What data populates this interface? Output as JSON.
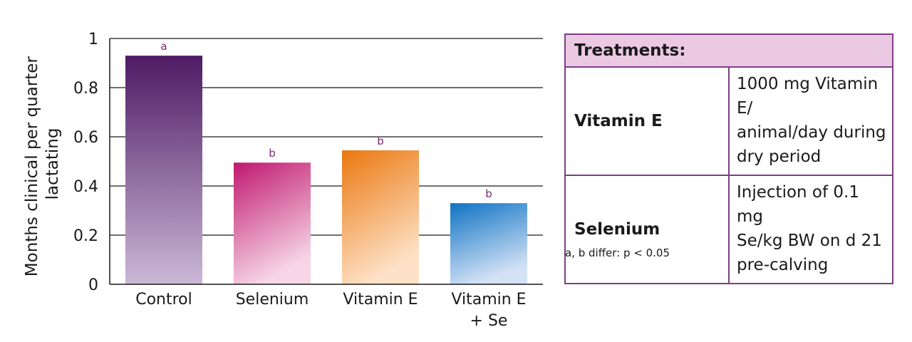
{
  "chart_data": {
    "type": "bar",
    "ylabel_lines": [
      "Months clinical per quarter",
      "lactating"
    ],
    "xlabel": "",
    "ylim": [
      0,
      1
    ],
    "yticks": [
      "0",
      "0.2",
      "0.4",
      "0.6",
      "0.8",
      "1"
    ],
    "grid": true,
    "categories": [
      [
        "Control"
      ],
      [
        "Selenium"
      ],
      [
        "Vitamin E"
      ],
      [
        "Vitamin E",
        "+ Se"
      ]
    ],
    "values": [
      0.93,
      0.495,
      0.545,
      0.33
    ],
    "significance": [
      "a",
      "b",
      "b",
      "b"
    ],
    "colors": [
      [
        "#4e1a64",
        "#cab8d6"
      ],
      [
        "#c0186f",
        "#f6d6e6"
      ],
      [
        "#ea7810",
        "#fde2c7"
      ],
      [
        "#0f73c4",
        "#d4e2f5"
      ]
    ]
  },
  "treatments": {
    "title": "Treatments:",
    "rows": [
      {
        "name": "Vitamin E",
        "desc": "1000 mg Vitamin E/\nanimal/day during\ndry period"
      },
      {
        "name": "Selenium",
        "desc": "Injection of 0.1 mg\nSe/kg BW on d 21\npre-calving"
      }
    ],
    "footnote": "a, b differ: p < 0.05"
  }
}
